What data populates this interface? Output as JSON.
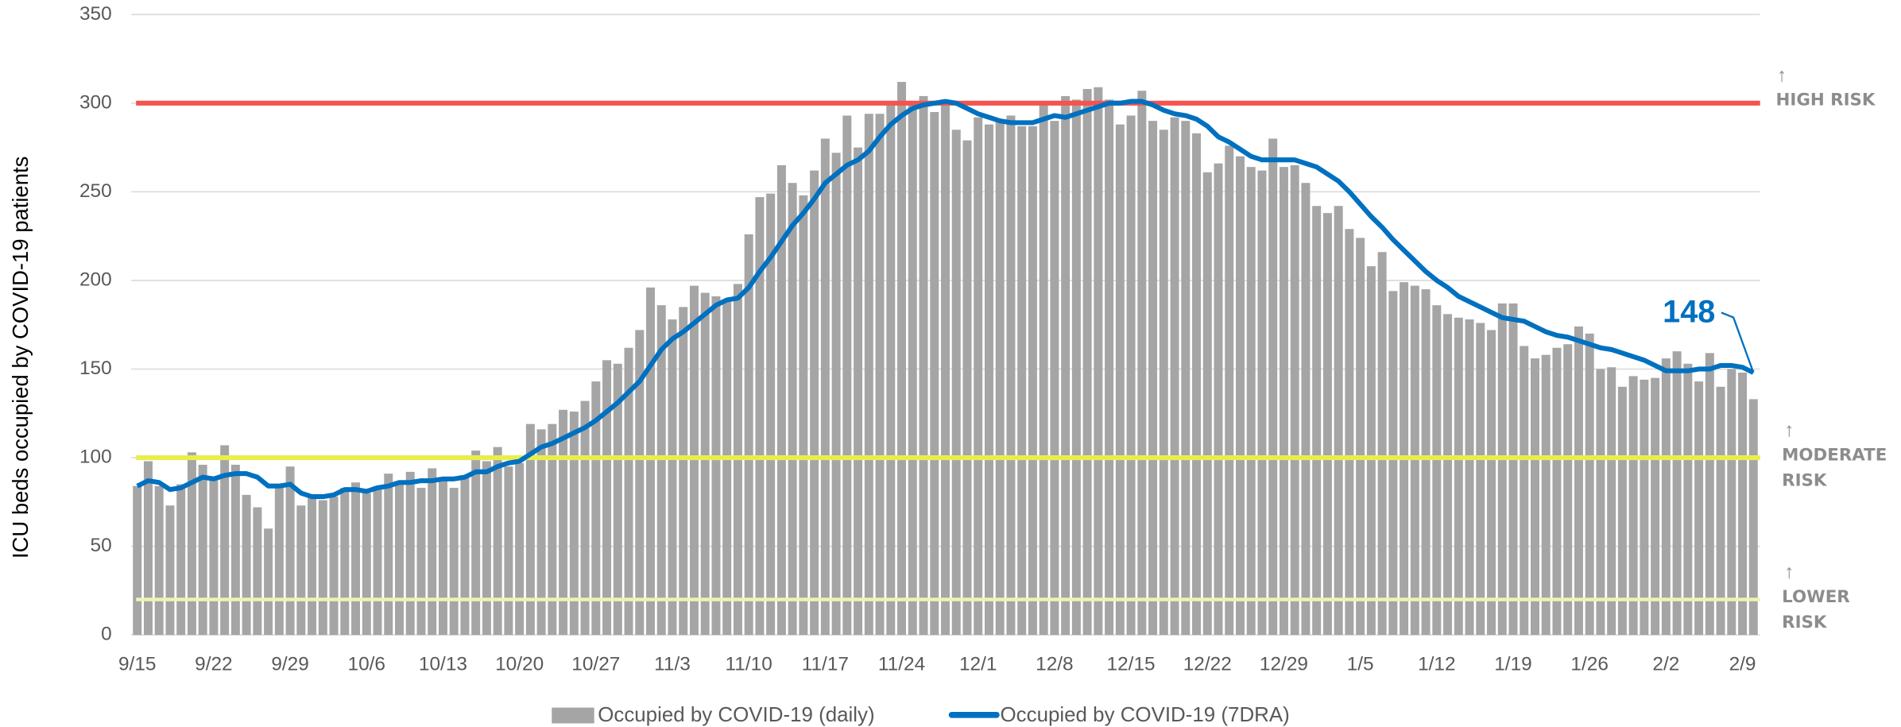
{
  "chart_data": {
    "type": "bar",
    "y_label": "ICU beds occupied by COVID-19 patients",
    "categories": [
      "9/15",
      null,
      null,
      null,
      null,
      null,
      null,
      "9/22",
      null,
      null,
      null,
      null,
      null,
      null,
      "9/29",
      null,
      null,
      null,
      null,
      null,
      null,
      "10/6",
      null,
      null,
      null,
      null,
      null,
      null,
      "10/13",
      null,
      null,
      null,
      null,
      null,
      null,
      "10/20",
      null,
      null,
      null,
      null,
      null,
      null,
      "10/27",
      null,
      null,
      null,
      null,
      null,
      null,
      "11/3",
      null,
      null,
      null,
      null,
      null,
      null,
      "11/10",
      null,
      null,
      null,
      null,
      null,
      null,
      "11/17",
      null,
      null,
      null,
      null,
      null,
      null,
      "11/24",
      null,
      null,
      null,
      null,
      null,
      null,
      "12/1",
      null,
      null,
      null,
      null,
      null,
      null,
      "12/8",
      null,
      null,
      null,
      null,
      null,
      null,
      "12/15",
      null,
      null,
      null,
      null,
      null,
      null,
      "12/22",
      null,
      null,
      null,
      null,
      null,
      null,
      "12/29",
      null,
      null,
      null,
      null,
      null,
      null,
      "1/5",
      null,
      null,
      null,
      null,
      null,
      null,
      "1/12",
      null,
      null,
      null,
      null,
      null,
      null,
      "1/19",
      null,
      null,
      null,
      null,
      null,
      null,
      "1/26",
      null,
      null,
      null,
      null,
      null,
      null,
      "2/2",
      null,
      null,
      null,
      null,
      null,
      null,
      "2/9",
      null
    ],
    "series": [
      {
        "name": "Occupied by COVID-19 (daily)",
        "type": "bar",
        "color": "#a5a5a5",
        "values": [
          84,
          98,
          84,
          73,
          85,
          103,
          96,
          88,
          107,
          96,
          79,
          72,
          60,
          84,
          95,
          73,
          78,
          76,
          78,
          83,
          86,
          80,
          84,
          91,
          85,
          92,
          83,
          94,
          88,
          83,
          90,
          104,
          98,
          106,
          95,
          97,
          119,
          116,
          119,
          127,
          126,
          132,
          143,
          155,
          153,
          162,
          172,
          196,
          186,
          178,
          185,
          197,
          193,
          191,
          188,
          198,
          226,
          247,
          249,
          265,
          255,
          248,
          262,
          280,
          272,
          293,
          275,
          294,
          294,
          300,
          312,
          300,
          304,
          295,
          302,
          285,
          279,
          292,
          288,
          290,
          293,
          287,
          287,
          300,
          290,
          304,
          302,
          308,
          309,
          302,
          288,
          293,
          307,
          290,
          285,
          292,
          290,
          283,
          261,
          266,
          276,
          270,
          264,
          262,
          280,
          264,
          265,
          255,
          242,
          238,
          242,
          229,
          224,
          208,
          216,
          194,
          199,
          197,
          195,
          186,
          181,
          179,
          178,
          176,
          172,
          187,
          187,
          163,
          156,
          158,
          162,
          164,
          174,
          170,
          150,
          151,
          140,
          146,
          144,
          145,
          156,
          160,
          153,
          143,
          159,
          140,
          150,
          148,
          133
        ]
      },
      {
        "name": "Occupied by COVID-19 (7DRA)",
        "type": "line",
        "color": "#0070c0",
        "values": [
          84,
          87,
          86,
          82,
          83,
          86,
          89,
          88,
          90,
          91,
          91,
          89,
          84,
          84,
          85,
          80,
          78,
          78,
          79,
          82,
          82,
          81,
          83,
          84,
          86,
          86,
          87,
          87,
          88,
          88,
          89,
          92,
          92,
          95,
          97,
          98,
          102,
          106,
          108,
          111,
          114,
          117,
          121,
          126,
          131,
          137,
          143,
          152,
          161,
          167,
          171,
          176,
          181,
          186,
          189,
          190,
          196,
          205,
          213,
          222,
          231,
          238,
          246,
          255,
          260,
          265,
          268,
          273,
          281,
          288,
          293,
          297,
          299,
          300,
          301,
          300,
          297,
          294,
          292,
          290,
          289,
          289,
          289,
          291,
          293,
          292,
          294,
          296,
          298,
          300,
          300,
          301,
          301,
          299,
          296,
          294,
          293,
          291,
          287,
          281,
          278,
          274,
          270,
          268,
          268,
          268,
          268,
          266,
          264,
          260,
          256,
          250,
          243,
          236,
          230,
          223,
          217,
          211,
          205,
          200,
          196,
          191,
          188,
          185,
          182,
          179,
          178,
          177,
          174,
          171,
          169,
          168,
          166,
          164,
          162,
          161,
          159,
          157,
          155,
          152,
          149,
          149,
          149,
          150,
          150,
          152,
          152,
          151,
          148
        ]
      }
    ],
    "thresholds": [
      {
        "value": 300,
        "label": "HIGH RISK",
        "color": "#f4534f"
      },
      {
        "value": 100,
        "label": "MODERATE RISK",
        "color": "#e8ee4c"
      },
      {
        "value": 20,
        "label": "LOWER RISK",
        "color": "#eef4b4"
      }
    ],
    "ylim": [
      0,
      350
    ],
    "yticks": [
      0,
      50,
      100,
      150,
      200,
      250,
      300,
      350
    ],
    "grid": true
  }
}
